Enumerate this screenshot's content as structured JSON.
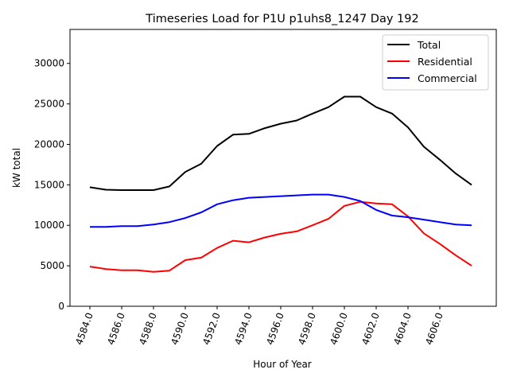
{
  "chart_data": {
    "type": "line",
    "title": "Timeseries Load for P1U p1uhs8_1247  Day 192",
    "xlabel": "Hour of Year",
    "ylabel": "kW total",
    "xlim": [
      4582.75,
      4609.55
    ],
    "ylim": [
      0,
      34200
    ],
    "xticks": [
      4584,
      4586,
      4588,
      4590,
      4592,
      4594,
      4596,
      4598,
      4600,
      4602,
      4604,
      4606
    ],
    "xtick_labels": [
      "4584.0",
      "4586.0",
      "4588.0",
      "4590.0",
      "4592.0",
      "4594.0",
      "4596.0",
      "4598.0",
      "4600.0",
      "4602.0",
      "4604.0",
      "4606.0"
    ],
    "yticks": [
      0,
      5000,
      10000,
      15000,
      20000,
      25000,
      30000
    ],
    "ytick_labels": [
      "0",
      "5000",
      "10000",
      "15000",
      "20000",
      "25000",
      "30000"
    ],
    "legend_position": "top-right",
    "grid": false,
    "x": [
      4584,
      4585,
      4586,
      4587,
      4588,
      4589,
      4590,
      4591,
      4592,
      4593,
      4594,
      4595,
      4596,
      4597,
      4598,
      4599,
      4600,
      4601,
      4602,
      4603,
      4604,
      4605,
      4606,
      4607,
      4608
    ],
    "series": [
      {
        "name": "Total",
        "color": "#000000",
        "values": [
          14700,
          14400,
          14350,
          14350,
          14350,
          14800,
          16600,
          17600,
          19800,
          21200,
          21300,
          22000,
          22550,
          22950,
          23800,
          24600,
          25900,
          25900,
          24600,
          23800,
          22100,
          19700,
          18100,
          16400,
          15000
        ]
      },
      {
        "name": "Residential",
        "color": "#ff0000",
        "values": [
          4900,
          4600,
          4450,
          4450,
          4250,
          4400,
          5700,
          6000,
          7200,
          8100,
          7900,
          8500,
          8950,
          9250,
          10000,
          10800,
          12400,
          12900,
          12700,
          12600,
          11100,
          9000,
          7700,
          6300,
          5000
        ]
      },
      {
        "name": "Commercial",
        "color": "#0000ff",
        "values": [
          9800,
          9800,
          9900,
          9900,
          10100,
          10400,
          10900,
          11600,
          12600,
          13100,
          13400,
          13500,
          13600,
          13700,
          13800,
          13800,
          13500,
          13000,
          11900,
          11200,
          11000,
          10700,
          10400,
          10100,
          10000
        ]
      }
    ]
  }
}
